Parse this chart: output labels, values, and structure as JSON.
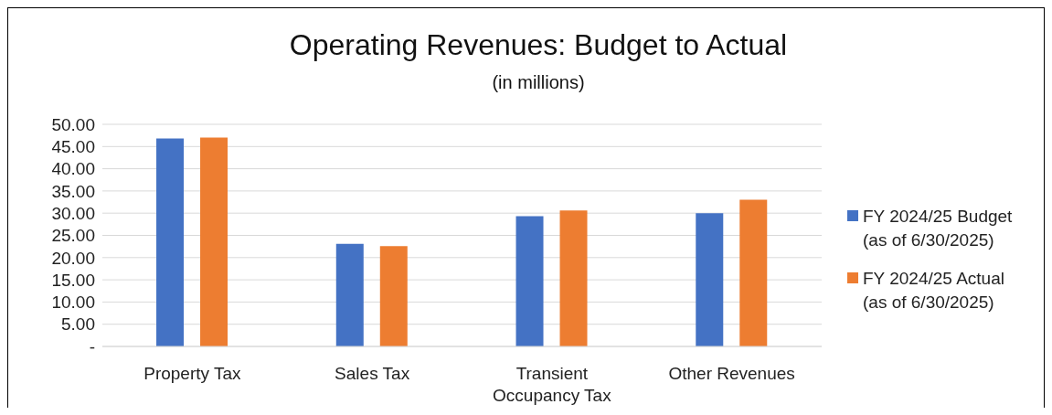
{
  "chart_data": {
    "type": "bar",
    "title": "Operating Revenues: Budget to Actual",
    "subtitle": "(in millions)",
    "categories": [
      "Property Tax",
      "Sales Tax",
      "Transient Occupancy Tax",
      "Other Revenues"
    ],
    "series": [
      {
        "name": "FY 2024/25 Budget (as of 6/30/2025)",
        "color": "#4472c4",
        "values": [
          46.8,
          23.1,
          29.3,
          30.0
        ]
      },
      {
        "name": "FY 2024/25 Actual (as of 6/30/2025)",
        "color": "#ed7d31",
        "values": [
          47.0,
          22.6,
          30.6,
          33.0
        ]
      }
    ],
    "ylim": [
      0,
      50
    ],
    "yticks": [
      {
        "value": 0,
        "label": "-"
      },
      {
        "value": 5,
        "label": "5.00"
      },
      {
        "value": 10,
        "label": "10.00"
      },
      {
        "value": 15,
        "label": "15.00"
      },
      {
        "value": 20,
        "label": "20.00"
      },
      {
        "value": 25,
        "label": "25.00"
      },
      {
        "value": 30,
        "label": "30.00"
      },
      {
        "value": 35,
        "label": "35.00"
      },
      {
        "value": 40,
        "label": "40.00"
      },
      {
        "value": 45,
        "label": "45.00"
      },
      {
        "value": 50,
        "label": "50.00"
      }
    ],
    "grid": "y",
    "legend": "right"
  }
}
